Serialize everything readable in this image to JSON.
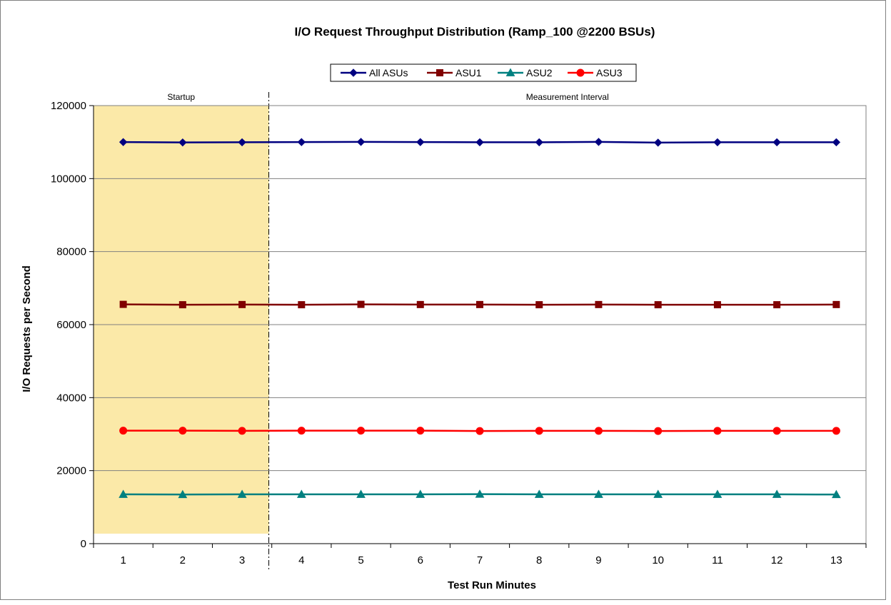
{
  "chart_data": {
    "type": "line",
    "title": "I/O Request Throughput Distribution (Ramp_100 @2200 BSUs)",
    "xlabel": "Test Run Minutes",
    "ylabel": "I/O Requests per Second",
    "x": [
      1,
      2,
      3,
      4,
      5,
      6,
      7,
      8,
      9,
      10,
      11,
      12,
      13
    ],
    "ylim": [
      0,
      120000
    ],
    "yticks": [
      0,
      20000,
      40000,
      60000,
      80000,
      100000,
      120000
    ],
    "grid": "horizontal",
    "legend_position": "top-center",
    "regions": [
      {
        "label": "Startup",
        "x_start": 0.5,
        "x_end": 3.45,
        "color": "#fbe9a8"
      },
      {
        "label": "Measurement Interval",
        "x_start": 3.45,
        "x_end": 13.5
      }
    ],
    "series": [
      {
        "name": "All ASUs",
        "color": "#000080",
        "marker": "diamond",
        "values": [
          110000,
          109900,
          109950,
          110000,
          110050,
          110000,
          109950,
          109950,
          110050,
          109850,
          109950,
          109950,
          109950
        ]
      },
      {
        "name": "ASU1",
        "color": "#800000",
        "marker": "square",
        "values": [
          65550,
          65450,
          65500,
          65450,
          65550,
          65500,
          65500,
          65450,
          65500,
          65450,
          65450,
          65450,
          65500
        ]
      },
      {
        "name": "ASU2",
        "color": "#008080",
        "marker": "triangle",
        "values": [
          13500,
          13450,
          13500,
          13500,
          13500,
          13500,
          13550,
          13500,
          13500,
          13500,
          13500,
          13500,
          13450
        ]
      },
      {
        "name": "ASU3",
        "color": "#ff0000",
        "marker": "circle",
        "values": [
          30950,
          30950,
          30900,
          30950,
          30950,
          30950,
          30850,
          30900,
          30900,
          30850,
          30900,
          30900,
          30900
        ]
      }
    ]
  }
}
